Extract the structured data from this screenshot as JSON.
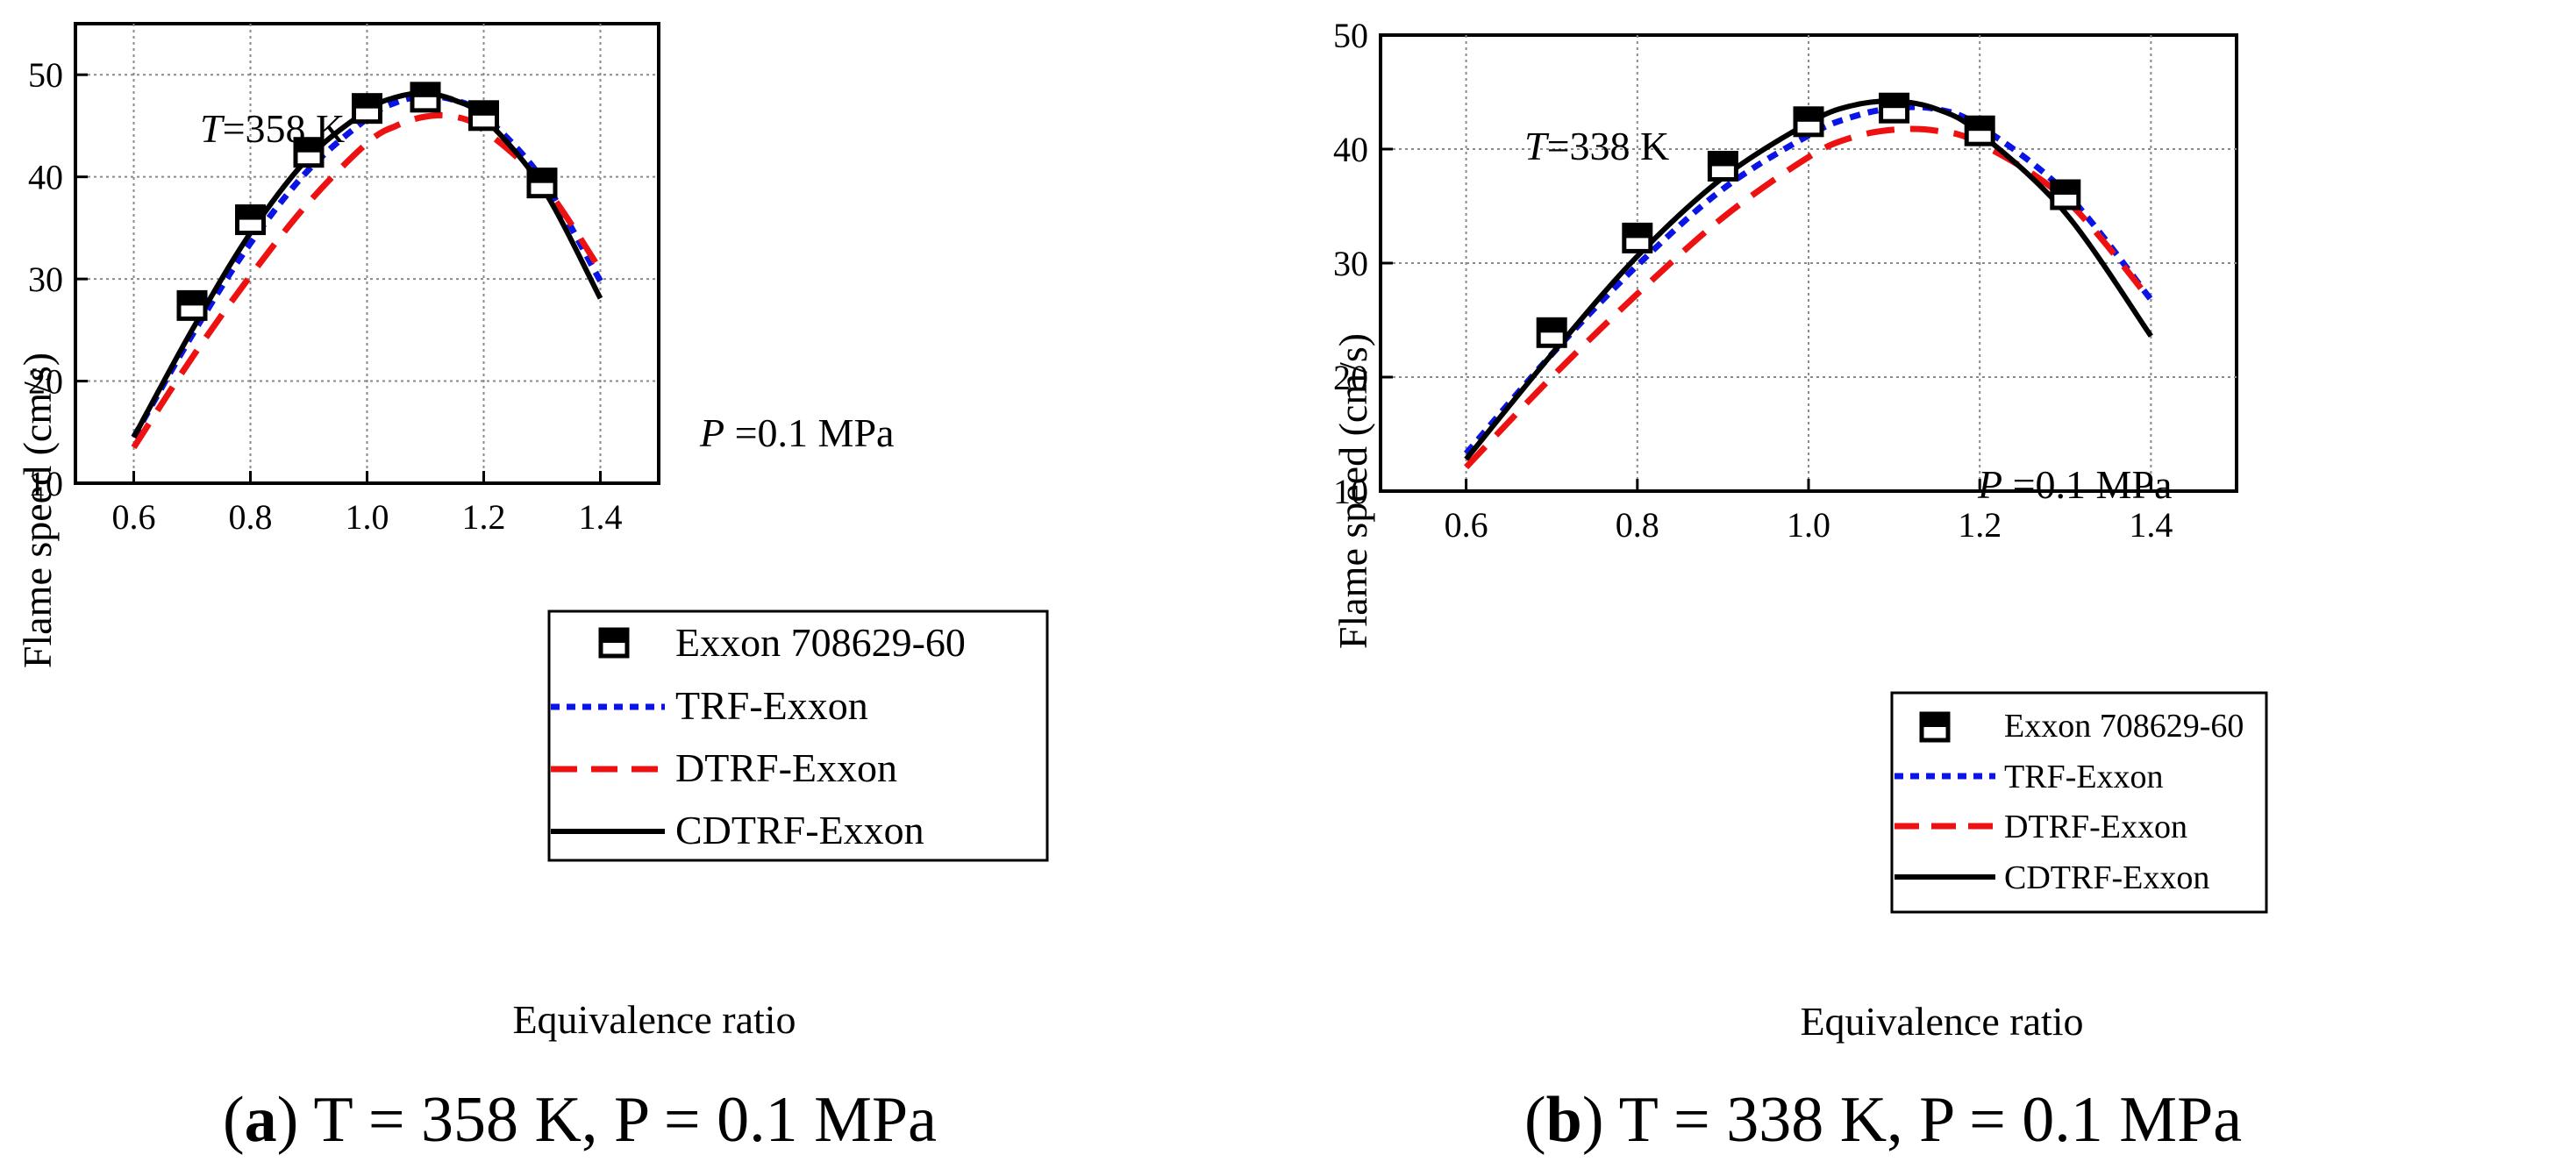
{
  "chart_data": [
    {
      "panel": "a",
      "type": "line",
      "xlabel": "Equivalence ratio",
      "ylabel": "Flame speed (cm/s)",
      "xlim": [
        0.5,
        1.5
      ],
      "ylim": [
        10,
        55
      ],
      "xticks": [
        0.6,
        0.8,
        1.0,
        1.2,
        1.4
      ],
      "xtick_labels": [
        "0.6",
        "0.8",
        "1.0",
        "1.2",
        "1.4"
      ],
      "yticks": [
        10,
        20,
        30,
        40,
        50
      ],
      "ytick_labels": [
        "10",
        "20",
        "30",
        "40",
        "50"
      ],
      "grid": true,
      "annotations": {
        "temp_italic": "T",
        "temp_text": "=358 K",
        "pressure_italic": "P",
        "pressure_text": " =0.1 MPa"
      },
      "legend_position": "bottom-right",
      "experiment": {
        "name": "Exxon 708629-60",
        "x": [
          0.7,
          0.8,
          0.9,
          1.0,
          1.1,
          1.2,
          1.3
        ],
        "y": [
          27.4,
          35.8,
          42.4,
          46.7,
          47.8,
          46.0,
          39.4
        ]
      },
      "series": [
        {
          "name": "TRF-Exxon",
          "style": "dotted",
          "color": "#0a14e6",
          "x": [
            0.6,
            0.7,
            0.8,
            0.9,
            1.0,
            1.05,
            1.1,
            1.15,
            1.2,
            1.3,
            1.4
          ],
          "y": [
            14.5,
            24.5,
            33.5,
            40.7,
            45.7,
            47.3,
            47.9,
            47.5,
            46.0,
            39.8,
            29.8
          ]
        },
        {
          "name": "DTRF-Exxon",
          "style": "dashed",
          "color": "#ee1111",
          "x": [
            0.6,
            0.7,
            0.8,
            0.9,
            1.0,
            1.05,
            1.1,
            1.15,
            1.2,
            1.3,
            1.4
          ],
          "y": [
            13.5,
            22.3,
            30.3,
            37.5,
            43.3,
            45.0,
            45.9,
            45.9,
            44.6,
            39.4,
            30.9
          ]
        },
        {
          "name": "CDTRF-Exxon",
          "style": "solid",
          "color": "#000000",
          "x": [
            0.6,
            0.7,
            0.8,
            0.9,
            1.0,
            1.05,
            1.1,
            1.15,
            1.2,
            1.3,
            1.4
          ],
          "y": [
            14.5,
            25.0,
            34.5,
            41.9,
            46.5,
            47.8,
            48.2,
            47.5,
            45.8,
            39.0,
            28.1
          ]
        }
      ],
      "caption_letter": "a",
      "caption_text": ") T = 358 K, P = 0.1 MPa"
    },
    {
      "panel": "b",
      "type": "line",
      "xlabel": "Equivalence ratio",
      "ylabel": "Flame speed (cm/s)",
      "xlim": [
        0.5,
        1.5
      ],
      "ylim": [
        10,
        50
      ],
      "xticks": [
        0.6,
        0.8,
        1.0,
        1.2,
        1.4
      ],
      "xtick_labels": [
        "0.6",
        "0.8",
        "1.0",
        "1.2",
        "1.4"
      ],
      "yticks": [
        10,
        20,
        30,
        40,
        50
      ],
      "ytick_labels": [
        "10",
        "20",
        "30",
        "40",
        "50"
      ],
      "grid": true,
      "annotations": {
        "temp_italic": "T",
        "temp_text": "=338 K",
        "pressure_italic": "P",
        "pressure_text": " =0.1 MPa"
      },
      "legend_position": "bottom-right",
      "experiment": {
        "name": "Exxon 708629-60",
        "x": [
          0.7,
          0.8,
          0.9,
          1.0,
          1.1,
          1.2,
          1.3
        ],
        "y": [
          23.9,
          32.2,
          38.5,
          42.4,
          43.6,
          41.6,
          36.0
        ]
      },
      "series": [
        {
          "name": "TRF-Exxon",
          "style": "dotted",
          "color": "#0a14e6",
          "x": [
            0.6,
            0.7,
            0.8,
            0.9,
            1.0,
            1.05,
            1.1,
            1.15,
            1.2,
            1.3,
            1.4
          ],
          "y": [
            13.3,
            22.0,
            29.8,
            36.5,
            41.2,
            42.8,
            43.6,
            43.5,
            42.0,
            36.2,
            26.8
          ]
        },
        {
          "name": "DTRF-Exxon",
          "style": "dashed",
          "color": "#ee1111",
          "x": [
            0.6,
            0.7,
            0.8,
            0.9,
            1.0,
            1.05,
            1.1,
            1.15,
            1.2,
            1.3,
            1.4
          ],
          "y": [
            12.1,
            20.0,
            27.3,
            34.0,
            39.3,
            41.0,
            41.7,
            41.6,
            40.5,
            35.6,
            26.7
          ]
        },
        {
          "name": "CDTRF-Exxon",
          "style": "solid",
          "color": "#000000",
          "x": [
            0.6,
            0.7,
            0.8,
            0.9,
            1.0,
            1.05,
            1.1,
            1.15,
            1.2,
            1.3,
            1.4
          ],
          "y": [
            12.8,
            22.0,
            30.6,
            37.5,
            42.3,
            43.8,
            44.2,
            43.5,
            41.4,
            34.4,
            23.6
          ]
        }
      ],
      "caption_letter": "b",
      "caption_text": ") T = 338 K, P = 0.1 MPa"
    }
  ]
}
